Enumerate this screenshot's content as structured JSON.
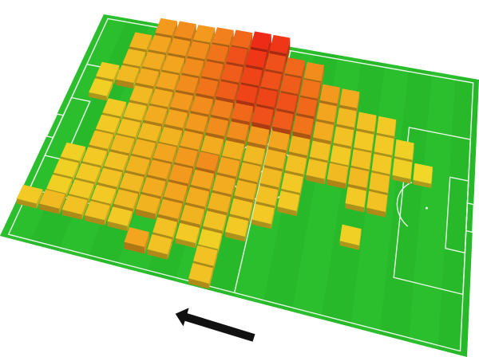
{
  "scene": {
    "title": "",
    "direction": "left",
    "colors": {
      "grass": "#28b92a",
      "grass_alt": "#2ec431",
      "lines": "#e8f7e8",
      "arrow": "#111111",
      "low": "#f0ec2a",
      "mid": "#f3a51f",
      "high": "#ee2b16"
    }
  },
  "heatmap": {
    "cols": 20,
    "rows": 14,
    "cells": [
      [
        3,
        0,
        0.55
      ],
      [
        4,
        0,
        0.6
      ],
      [
        5,
        0,
        0.55
      ],
      [
        6,
        0,
        0.65
      ],
      [
        7,
        0,
        0.75
      ],
      [
        8,
        0,
        1.0
      ],
      [
        9,
        0,
        0.95
      ],
      [
        2,
        1,
        0.4
      ],
      [
        3,
        1,
        0.5
      ],
      [
        4,
        1,
        0.55
      ],
      [
        5,
        1,
        0.6
      ],
      [
        6,
        1,
        0.7
      ],
      [
        7,
        1,
        0.85
      ],
      [
        8,
        1,
        0.95
      ],
      [
        9,
        1,
        0.85
      ],
      [
        10,
        1,
        0.75
      ],
      [
        11,
        1,
        0.6
      ],
      [
        2,
        2,
        0.35
      ],
      [
        3,
        2,
        0.45
      ],
      [
        4,
        2,
        0.5
      ],
      [
        5,
        2,
        0.6
      ],
      [
        6,
        2,
        0.7
      ],
      [
        7,
        2,
        0.8
      ],
      [
        8,
        2,
        0.9
      ],
      [
        9,
        2,
        0.85
      ],
      [
        10,
        2,
        0.8
      ],
      [
        11,
        2,
        0.7
      ],
      [
        12,
        2,
        0.55
      ],
      [
        13,
        2,
        0.45
      ],
      [
        1,
        3,
        0.25
      ],
      [
        2,
        3,
        0.35
      ],
      [
        3,
        3,
        0.45
      ],
      [
        4,
        3,
        0.5
      ],
      [
        5,
        3,
        0.6
      ],
      [
        6,
        3,
        0.7
      ],
      [
        7,
        3,
        0.8
      ],
      [
        8,
        3,
        0.9
      ],
      [
        9,
        3,
        0.9
      ],
      [
        10,
        3,
        0.85
      ],
      [
        11,
        3,
        0.75
      ],
      [
        12,
        3,
        0.5
      ],
      [
        13,
        3,
        0.35
      ],
      [
        14,
        3,
        0.3
      ],
      [
        15,
        3,
        0.25
      ],
      [
        1,
        4,
        0.2
      ],
      [
        3,
        4,
        0.35
      ],
      [
        4,
        4,
        0.45
      ],
      [
        5,
        4,
        0.55
      ],
      [
        6,
        4,
        0.6
      ],
      [
        7,
        4,
        0.65
      ],
      [
        8,
        4,
        0.75
      ],
      [
        9,
        4,
        0.85
      ],
      [
        10,
        4,
        0.8
      ],
      [
        11,
        4,
        0.7
      ],
      [
        12,
        4,
        0.45
      ],
      [
        13,
        4,
        0.3
      ],
      [
        14,
        4,
        0.25
      ],
      [
        15,
        4,
        0.25
      ],
      [
        16,
        4,
        0.2
      ],
      [
        2,
        5,
        0.25
      ],
      [
        3,
        5,
        0.3
      ],
      [
        4,
        5,
        0.45
      ],
      [
        5,
        5,
        0.5
      ],
      [
        6,
        5,
        0.55
      ],
      [
        7,
        5,
        0.6
      ],
      [
        8,
        5,
        0.6
      ],
      [
        9,
        5,
        0.55
      ],
      [
        10,
        5,
        0.5
      ],
      [
        11,
        5,
        0.4
      ],
      [
        12,
        5,
        0.3
      ],
      [
        13,
        5,
        0.25
      ],
      [
        14,
        5,
        0.3
      ],
      [
        15,
        5,
        0.25
      ],
      [
        16,
        5,
        0.2
      ],
      [
        17,
        5,
        0.15
      ],
      [
        2,
        6,
        0.25
      ],
      [
        3,
        6,
        0.3
      ],
      [
        4,
        6,
        0.35
      ],
      [
        5,
        6,
        0.4
      ],
      [
        6,
        6,
        0.5
      ],
      [
        7,
        6,
        0.45
      ],
      [
        8,
        6,
        0.4
      ],
      [
        9,
        6,
        0.35
      ],
      [
        10,
        6,
        0.4
      ],
      [
        11,
        6,
        0.3
      ],
      [
        12,
        6,
        0.3
      ],
      [
        13,
        6,
        0.35
      ],
      [
        14,
        6,
        0.35
      ],
      [
        15,
        6,
        0.3
      ],
      [
        2,
        7,
        0.3
      ],
      [
        3,
        7,
        0.35
      ],
      [
        4,
        7,
        0.4
      ],
      [
        5,
        7,
        0.5
      ],
      [
        6,
        7,
        0.55
      ],
      [
        7,
        7,
        0.6
      ],
      [
        8,
        7,
        0.5
      ],
      [
        9,
        7,
        0.4
      ],
      [
        10,
        7,
        0.35
      ],
      [
        11,
        7,
        0.25
      ],
      [
        14,
        7,
        0.25
      ],
      [
        15,
        7,
        0.3
      ],
      [
        1,
        8,
        0.2
      ],
      [
        2,
        8,
        0.25
      ],
      [
        3,
        8,
        0.3
      ],
      [
        4,
        8,
        0.4
      ],
      [
        5,
        8,
        0.5
      ],
      [
        6,
        8,
        0.55
      ],
      [
        7,
        8,
        0.5
      ],
      [
        8,
        8,
        0.45
      ],
      [
        9,
        8,
        0.4
      ],
      [
        10,
        8,
        0.3
      ],
      [
        11,
        8,
        0.25
      ],
      [
        1,
        9,
        0.2
      ],
      [
        2,
        9,
        0.25
      ],
      [
        3,
        9,
        0.3
      ],
      [
        4,
        9,
        0.35
      ],
      [
        5,
        9,
        0.45
      ],
      [
        6,
        9,
        0.5
      ],
      [
        7,
        9,
        0.45
      ],
      [
        8,
        9,
        0.4
      ],
      [
        9,
        9,
        0.3
      ],
      [
        10,
        9,
        0.25
      ],
      [
        14,
        9,
        0.2
      ],
      [
        1,
        10,
        0.2
      ],
      [
        2,
        10,
        0.25
      ],
      [
        3,
        10,
        0.25
      ],
      [
        4,
        10,
        0.35
      ],
      [
        5,
        10,
        0.4
      ],
      [
        6,
        10,
        0.45
      ],
      [
        7,
        10,
        0.4
      ],
      [
        8,
        10,
        0.3
      ],
      [
        9,
        10,
        0.25
      ],
      [
        0,
        11,
        0.25
      ],
      [
        1,
        11,
        0.35
      ],
      [
        2,
        11,
        0.3
      ],
      [
        3,
        11,
        0.3
      ],
      [
        4,
        11,
        0.25
      ],
      [
        6,
        11,
        0.3
      ],
      [
        7,
        11,
        0.25
      ],
      [
        8,
        11,
        0.2
      ],
      [
        5,
        12,
        0.5
      ],
      [
        6,
        12,
        0.3
      ],
      [
        8,
        12,
        0.3
      ],
      [
        8,
        13,
        0.3
      ]
    ]
  }
}
